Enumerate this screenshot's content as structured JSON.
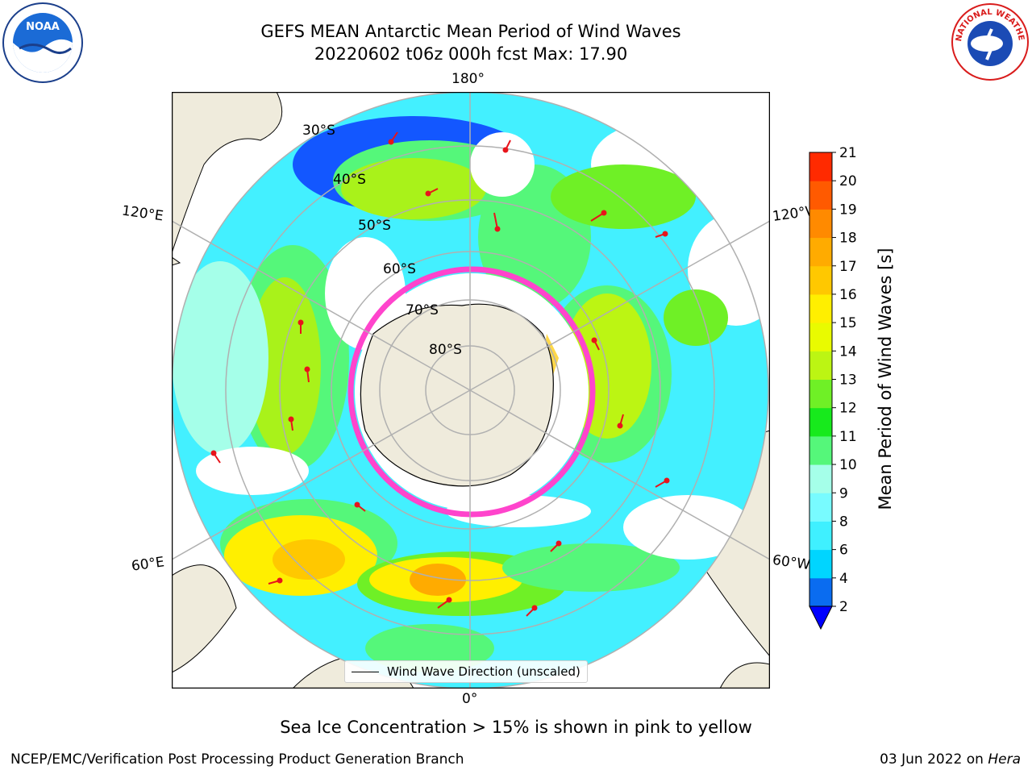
{
  "header": {
    "title_line1": "GEFS MEAN Antarctic Mean Period of Wind Waves",
    "title_line2": "20220602 t06z 000h fcst   Max: 17.90"
  },
  "map": {
    "lon_labels": {
      "top": "180°",
      "bottom": "0°",
      "upper_left": "120°E",
      "upper_right": "120°W",
      "lower_left": "60°E",
      "lower_right": "60°W"
    },
    "lat_labels": [
      "30°S",
      "40°S",
      "50°S",
      "60°S",
      "70°S",
      "80°S"
    ],
    "land_color": "#efebdc",
    "arrow_color": "#e8141b",
    "ice_colors": [
      "#ff44cc",
      "#ffd84a"
    ]
  },
  "legend": {
    "label": "Wind Wave Direction (unscaled)"
  },
  "colorbar": {
    "label": "Mean Period of Wind Waves [s]",
    "ticks": [
      2,
      4,
      6,
      8,
      9,
      10,
      11,
      12,
      13,
      14,
      15,
      16,
      17,
      18,
      19,
      20,
      21
    ],
    "colors": [
      "#0a6cf0",
      "#00d5ff",
      "#3ff0ff",
      "#78fbff",
      "#a5ffe9",
      "#55f77a",
      "#17ea1c",
      "#6ff026",
      "#bcf513",
      "#e9fb00",
      "#ffef00",
      "#ffc800",
      "#ffab00",
      "#ff8a00",
      "#ff5a00",
      "#ff2a00"
    ],
    "extend_color": "#0000ff"
  },
  "caption": "Sea Ice Concentration > 15% is shown in pink to yellow",
  "footer": {
    "left": "NCEP/EMC/Verification Post Processing Product Generation Branch",
    "right_date": "03 Jun 2022 on ",
    "right_host": "Hera"
  },
  "logos": {
    "left": "NOAA",
    "right_arc": "NATIONAL WEATHER SERVICE"
  }
}
